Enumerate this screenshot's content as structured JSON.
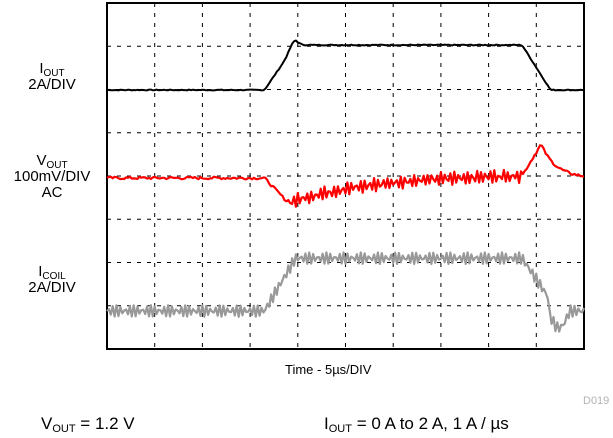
{
  "chart_data": {
    "type": "line",
    "title": "",
    "xlabel": "Time - 5µs/DIV",
    "grid": true,
    "divisions": {
      "x": 10,
      "y": 8
    },
    "series": [
      {
        "label_main": "I",
        "label_sub": "OUT",
        "label_scale": "2A/DIV",
        "label_extra": "",
        "color": "#000000",
        "x_div": [
          0,
          3.3,
          3.6,
          3.9,
          10
        ],
        "level_div": [
          0,
          0,
          1.0,
          1.0,
          0
        ],
        "shape": "pulse",
        "rise_div": [
          3.3,
          3.95
        ],
        "fall_div": [
          8.7,
          9.3
        ],
        "overshoot_div": 0.13,
        "noise_div": 0.02
      },
      {
        "label_main": "V",
        "label_sub": "OUT",
        "label_scale": "100mV/DIV",
        "label_extra": "AC",
        "color": "#ff0000",
        "shape": "transient",
        "dip_div": -0.55,
        "dip_at_div": 3.8,
        "recover_to_div": 0.05,
        "release_at_div": 8.7,
        "peak_div": 0.75,
        "peak_at_div": 9.1,
        "noise_div": 0.06
      },
      {
        "label_main": "I",
        "label_sub": "COIL",
        "label_scale": "2A/DIV",
        "label_extra": "",
        "color": "#999999",
        "shape": "pulse",
        "rise_div": [
          3.3,
          3.95
        ],
        "fall_div": [
          8.7,
          9.45
        ],
        "ripple_div": 0.12,
        "undershoot_div": 0.35
      }
    ]
  },
  "figure_code": "D019",
  "conditions": {
    "left_main": "V",
    "left_sub": "OUT",
    "left_rest": " = 1.2 V",
    "right_main": "I",
    "right_sub": "OUT",
    "right_rest": " = 0 A to 2 A, 1 A / µs"
  }
}
